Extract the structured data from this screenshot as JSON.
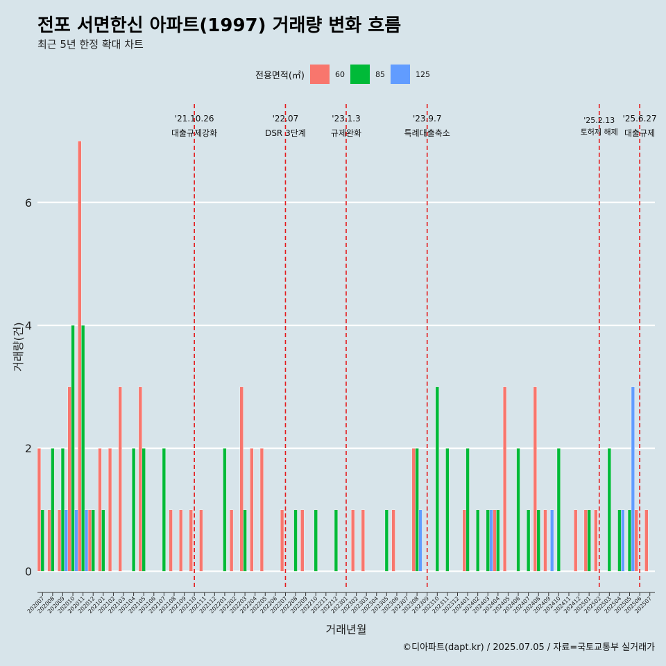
{
  "title": "전포 서면한신 아파트(1997) 거래량 변화 흐름",
  "subtitle": "최근 5년 한정 확대 차트",
  "legend": {
    "title": "전용면적(㎡)",
    "items": [
      {
        "label": "60",
        "color": "#f8766d"
      },
      {
        "label": "85",
        "color": "#00ba38"
      },
      {
        "label": "125",
        "color": "#619cff"
      }
    ]
  },
  "caption": "©디아파트(dapt.kr) / 2025.07.05 / 자료=국토교통부 실거래가",
  "chart_data": {
    "type": "bar",
    "xlabel": "거래년월",
    "ylabel": "거래량(건)",
    "ylim": [
      -0.3,
      7.6
    ],
    "yticks": [
      0,
      2,
      4,
      6
    ],
    "grid": true,
    "legend_position": "top",
    "categories": [
      "202007",
      "202008",
      "202009",
      "202010",
      "202011",
      "202012",
      "202101",
      "202102",
      "202103",
      "202104",
      "202105",
      "202106",
      "202107",
      "202108",
      "202109",
      "202110",
      "202111",
      "202112",
      "202201",
      "202202",
      "202203",
      "202204",
      "202205",
      "202206",
      "202207",
      "202208",
      "202209",
      "202210",
      "202211",
      "202212",
      "202301",
      "202302",
      "202303",
      "202304",
      "202305",
      "202306",
      "202307",
      "202308",
      "202309",
      "202310",
      "202311",
      "202312",
      "202401",
      "202402",
      "202403",
      "202404",
      "202405",
      "202406",
      "202407",
      "202408",
      "202409",
      "202410",
      "202411",
      "202412",
      "202501",
      "202502",
      "202503",
      "202504",
      "202505",
      "202506",
      "202507"
    ],
    "series": [
      {
        "name": "60",
        "color": "#f8766d",
        "values": [
          2,
          1,
          1,
          3,
          7,
          1,
          2,
          2,
          3,
          0,
          3,
          0,
          0,
          1,
          1,
          1,
          1,
          0,
          0,
          1,
          3,
          2,
          2,
          0,
          1,
          0,
          1,
          0,
          0,
          0,
          0,
          1,
          1,
          0,
          0,
          1,
          0,
          2,
          0,
          0,
          0,
          0,
          1,
          0,
          0,
          1,
          3,
          0,
          0,
          3,
          1,
          0,
          0,
          1,
          1,
          1,
          0,
          0,
          0,
          1,
          1
        ]
      },
      {
        "name": "85",
        "color": "#00ba38",
        "values": [
          1,
          2,
          2,
          4,
          4,
          1,
          1,
          0,
          0,
          2,
          2,
          0,
          2,
          0,
          0,
          0,
          0,
          0,
          2,
          0,
          1,
          0,
          0,
          0,
          0,
          1,
          0,
          1,
          0,
          1,
          0,
          0,
          0,
          0,
          1,
          0,
          0,
          2,
          0,
          3,
          2,
          0,
          2,
          1,
          1,
          1,
          0,
          2,
          1,
          1,
          0,
          2,
          0,
          0,
          1,
          0,
          2,
          1,
          1,
          0,
          0
        ]
      },
      {
        "name": "125",
        "color": "#619cff",
        "values": [
          0,
          0,
          1,
          1,
          1,
          0,
          0,
          0,
          0,
          0,
          0,
          0,
          0,
          0,
          0,
          0,
          0,
          0,
          0,
          0,
          0,
          0,
          0,
          0,
          0,
          0,
          0,
          0,
          0,
          0,
          0,
          0,
          0,
          0,
          0,
          0,
          0,
          1,
          0,
          0,
          0,
          0,
          0,
          0,
          1,
          0,
          0,
          0,
          0,
          0,
          1,
          0,
          0,
          0,
          0,
          0,
          0,
          1,
          3,
          0,
          0
        ]
      }
    ],
    "annotations": [
      {
        "category": "202110",
        "date": "'21.10.26",
        "label": "대출규제강화"
      },
      {
        "category": "202207",
        "date": "'22.07",
        "label": "DSR 3단계"
      },
      {
        "category": "202301",
        "date": "'23.1.3",
        "label": "규제완화"
      },
      {
        "category": "202309",
        "date": "'23.9.7",
        "label": "특례대출축소"
      },
      {
        "category": "202502",
        "date": "'25.2.13",
        "label": "토허제 해제"
      },
      {
        "category": "202506",
        "date": "'25.6.27",
        "label": "대출규제"
      }
    ]
  }
}
